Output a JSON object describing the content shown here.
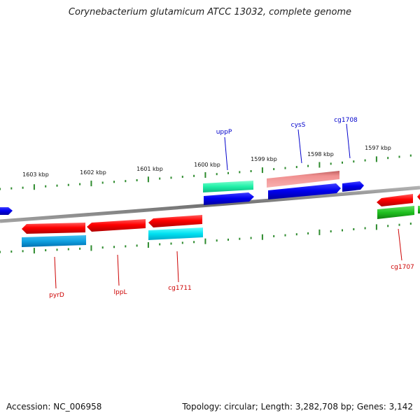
{
  "title": "Corynebacterium glutamicum ATCC 13032, complete genome",
  "footer": {
    "accession": "Accession: NC_006958",
    "summary": "Topology: circular; Length: 3,282,708 bp; Genes: 3,142"
  },
  "ticks": [
    {
      "label": "1603 kbp"
    },
    {
      "label": "1602 kbp"
    },
    {
      "label": "1601 kbp"
    },
    {
      "label": "1600 kbp"
    },
    {
      "label": "1599 kbp"
    },
    {
      "label": "1598 kbp"
    },
    {
      "label": "1597 kbp"
    }
  ],
  "gene_labels": [
    {
      "name": "uppP",
      "color": "#0000cc"
    },
    {
      "name": "cysS",
      "color": "#0000cc"
    },
    {
      "name": "cg1708",
      "color": "#0000cc"
    },
    {
      "name": "pyrD",
      "color": "#cc0000"
    },
    {
      "name": "lppL",
      "color": "#cc0000"
    },
    {
      "name": "cg1711",
      "color": "#cc0000"
    },
    {
      "name": "cg1707",
      "color": "#cc0000"
    }
  ],
  "colors": {
    "backbone": "#808080",
    "tick": "#2e8b2e",
    "red": "#e00000",
    "blue": "#0000e0",
    "cyan": "#00c8e8",
    "skyblue": "#1ea0e0",
    "teal": "#20e0a0",
    "pink": "#f08080",
    "green": "#20b020"
  }
}
